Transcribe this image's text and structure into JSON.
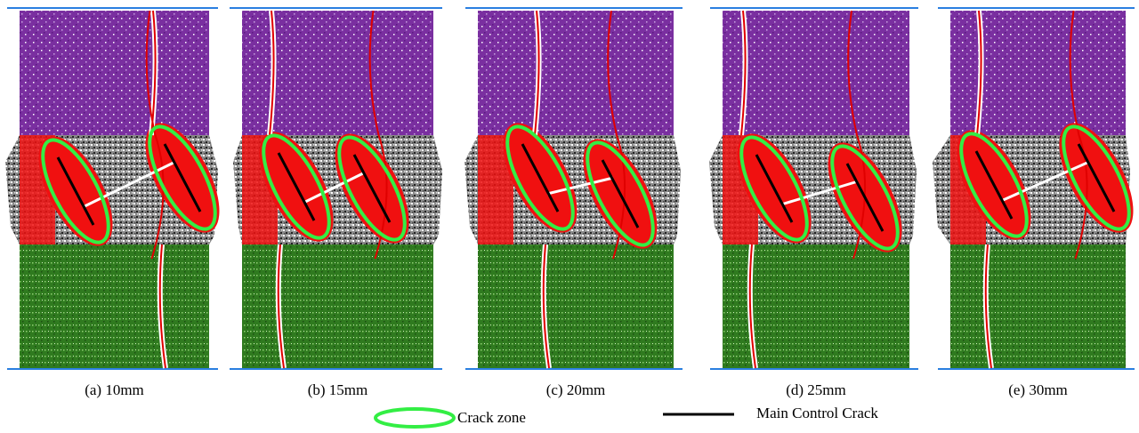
{
  "panels": [
    {
      "caption": "(a) 10mm"
    },
    {
      "caption": "(b) 15mm"
    },
    {
      "caption": "(c) 20mm"
    },
    {
      "caption": "(d) 25mm"
    },
    {
      "caption": "(e) 30mm"
    }
  ],
  "legend": {
    "crack_zone": "Crack zone",
    "main_crack": "Main Control Crack"
  }
}
